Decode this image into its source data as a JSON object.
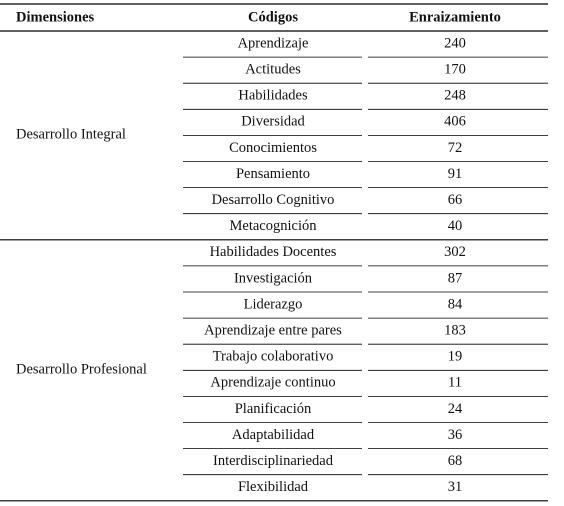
{
  "table": {
    "header": [
      "Dimensiones",
      "Códigos",
      "Enraizamiento"
    ],
    "groups": [
      {
        "dimension": "Desarrollo Integral",
        "rows": [
          [
            "Aprendizaje",
            240
          ],
          [
            "Actitudes",
            170
          ],
          [
            "Habilidades",
            248
          ],
          [
            "Diversidad",
            406
          ],
          [
            "Conocimientos",
            72
          ],
          [
            "Pensamiento",
            91
          ],
          [
            "Desarrollo Cognitivo",
            66
          ],
          [
            "Metacognición",
            40
          ]
        ]
      },
      {
        "dimension": "Desarrollo Profesional",
        "rows": [
          [
            "Habilidades Docentes",
            302
          ],
          [
            "Investigación",
            87
          ],
          [
            "Liderazgo",
            84
          ],
          [
            "Aprendizaje entre pares",
            183
          ],
          [
            "Trabajo colaborativo",
            19
          ],
          [
            "Aprendizaje continuo",
            11
          ],
          [
            "Planificación",
            24
          ],
          [
            "Adaptabilidad",
            36
          ],
          [
            "Interdisciplinariedad",
            68
          ],
          [
            "Flexibilidad",
            31
          ]
        ]
      }
    ]
  }
}
